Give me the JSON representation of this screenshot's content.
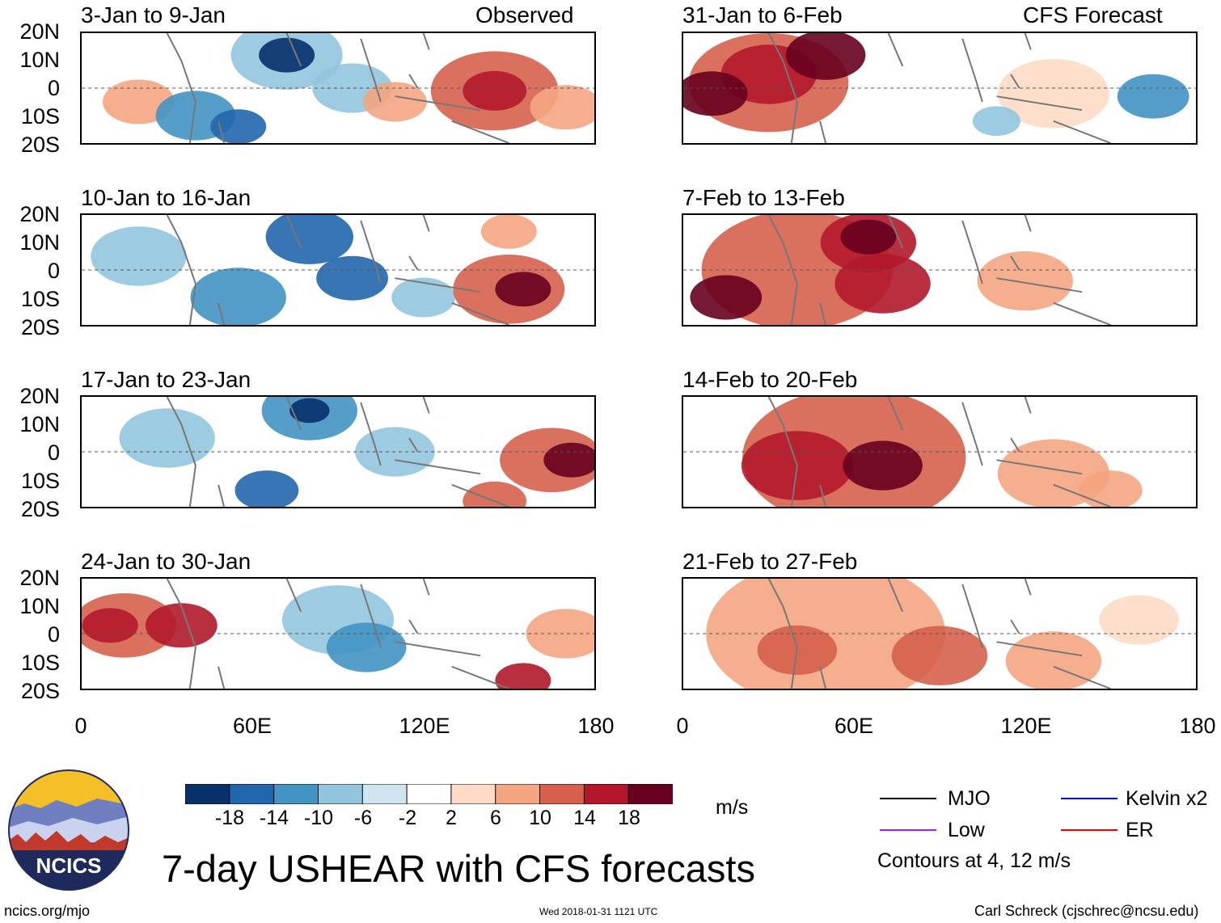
{
  "panels": {
    "obs_header": "Observed",
    "fcst_header": "CFS Forecast",
    "items": [
      {
        "title": "3-Jan to 9-Jan",
        "side": "observed"
      },
      {
        "title": "10-Jan to 16-Jan",
        "side": "observed"
      },
      {
        "title": "17-Jan to 23-Jan",
        "side": "observed"
      },
      {
        "title": "24-Jan to 30-Jan",
        "side": "observed"
      },
      {
        "title": "31-Jan to 6-Feb",
        "side": "forecast"
      },
      {
        "title": "7-Feb to 13-Feb",
        "side": "forecast"
      },
      {
        "title": "14-Feb to 20-Feb",
        "side": "forecast"
      },
      {
        "title": "21-Feb to 27-Feb",
        "side": "forecast"
      }
    ]
  },
  "axes": {
    "lat_ticks": [
      "20N",
      "10N",
      "0",
      "10S",
      "20S"
    ],
    "lon_ticks": [
      "0",
      "60E",
      "120E",
      "180"
    ]
  },
  "colorbar": {
    "labels": [
      "-18",
      "-14",
      "-10",
      "-6",
      "-2",
      "2",
      "6",
      "10",
      "14",
      "18"
    ],
    "colors": [
      "#08306b",
      "#2166ac",
      "#4393c3",
      "#92c5de",
      "#d1e5f0",
      "#ffffff",
      "#fddbc7",
      "#f4a582",
      "#d6604d",
      "#b2182b",
      "#67001f"
    ],
    "units": "m/s"
  },
  "legend": {
    "mjo": "MJO",
    "low": "Low",
    "kelvin": "Kelvin x2",
    "er": "ER",
    "contour_note": "Contours at 4, 12 m/s",
    "colors": {
      "mjo": "#000000",
      "low": "#a020f0",
      "kelvin": "#0000dd",
      "er": "#ee0000"
    }
  },
  "title": "7-day USHEAR with CFS forecasts",
  "logo_text": "NCICS",
  "footer": {
    "url": "ncics.org/mjo",
    "timestamp": "Wed 2018-01-31 1121 UTC",
    "author": "Carl Schreck (cjschrec@ncsu.edu)"
  },
  "chart_data": {
    "type": "heatmap",
    "variable": "7-day USHEAR anomaly",
    "units": "m/s",
    "x_range": [
      0,
      180
    ],
    "y_range": [
      -20,
      20
    ],
    "panels": [
      {
        "title": "3-Jan to 9-Jan",
        "blobs": [
          [
            20,
            -5,
            9,
            "#f4a582"
          ],
          [
            40,
            -10,
            10,
            "#4393c3"
          ],
          [
            55,
            -14,
            7,
            "#2166ac"
          ],
          [
            72,
            12,
            14,
            "#92c5de"
          ],
          [
            72,
            12,
            7,
            "#08306b"
          ],
          [
            95,
            0,
            10,
            "#92c5de"
          ],
          [
            110,
            -5,
            8,
            "#f4a582"
          ],
          [
            145,
            -1,
            16,
            "#d6604d"
          ],
          [
            145,
            -1,
            8,
            "#b2182b"
          ],
          [
            170,
            -7,
            9,
            "#f4a582"
          ]
        ]
      },
      {
        "title": "10-Jan to 16-Jan",
        "blobs": [
          [
            20,
            5,
            12,
            "#92c5de"
          ],
          [
            55,
            -10,
            12,
            "#4393c3"
          ],
          [
            80,
            12,
            11,
            "#2166ac"
          ],
          [
            95,
            -3,
            9,
            "#2166ac"
          ],
          [
            120,
            -10,
            8,
            "#92c5de"
          ],
          [
            150,
            -7,
            14,
            "#d6604d"
          ],
          [
            155,
            -7,
            7,
            "#67001f"
          ],
          [
            150,
            14,
            7,
            "#f4a582"
          ]
        ]
      },
      {
        "title": "17-Jan to 23-Jan",
        "blobs": [
          [
            30,
            5,
            12,
            "#92c5de"
          ],
          [
            80,
            15,
            12,
            "#4393c3"
          ],
          [
            80,
            15,
            5,
            "#08306b"
          ],
          [
            65,
            -14,
            8,
            "#2166ac"
          ],
          [
            110,
            0,
            10,
            "#92c5de"
          ],
          [
            165,
            -3,
            13,
            "#d6604d"
          ],
          [
            172,
            -3,
            7,
            "#67001f"
          ],
          [
            145,
            -18,
            8,
            "#d6604d"
          ]
        ]
      },
      {
        "title": "24-Jan to 30-Jan",
        "blobs": [
          [
            15,
            3,
            13,
            "#d6604d"
          ],
          [
            10,
            3,
            7,
            "#b2182b"
          ],
          [
            35,
            3,
            9,
            "#b2182b"
          ],
          [
            90,
            5,
            14,
            "#92c5de"
          ],
          [
            100,
            -5,
            10,
            "#4393c3"
          ],
          [
            170,
            0,
            10,
            "#f4a582"
          ],
          [
            155,
            -17,
            7,
            "#b2182b"
          ]
        ]
      },
      {
        "title": "31-Jan to 6-Feb",
        "blobs": [
          [
            30,
            2,
            20,
            "#d6604d"
          ],
          [
            30,
            5,
            12,
            "#b2182b"
          ],
          [
            50,
            12,
            10,
            "#67001f"
          ],
          [
            10,
            -2,
            9,
            "#67001f"
          ],
          [
            130,
            -2,
            14,
            "#fddbc7"
          ],
          [
            165,
            -3,
            9,
            "#4393c3"
          ],
          [
            110,
            -12,
            6,
            "#92c5de"
          ]
        ]
      },
      {
        "title": "7-Feb to 13-Feb",
        "blobs": [
          [
            40,
            0,
            24,
            "#d6604d"
          ],
          [
            65,
            10,
            12,
            "#b2182b"
          ],
          [
            65,
            12,
            7,
            "#67001f"
          ],
          [
            15,
            -10,
            9,
            "#67001f"
          ],
          [
            70,
            -5,
            12,
            "#b2182b"
          ],
          [
            120,
            -4,
            12,
            "#f4a582"
          ]
        ]
      },
      {
        "title": "14-Feb to 20-Feb",
        "blobs": [
          [
            60,
            -2,
            28,
            "#d6604d"
          ],
          [
            40,
            -5,
            14,
            "#b2182b"
          ],
          [
            70,
            -5,
            10,
            "#67001f"
          ],
          [
            130,
            -8,
            14,
            "#f4a582"
          ],
          [
            150,
            -14,
            8,
            "#f4a582"
          ]
        ]
      },
      {
        "title": "21-Feb to 27-Feb",
        "blobs": [
          [
            50,
            0,
            30,
            "#f4a582"
          ],
          [
            40,
            -6,
            10,
            "#d6604d"
          ],
          [
            90,
            -8,
            12,
            "#d6604d"
          ],
          [
            130,
            -10,
            12,
            "#f4a582"
          ],
          [
            160,
            5,
            10,
            "#fddbc7"
          ]
        ]
      }
    ]
  }
}
